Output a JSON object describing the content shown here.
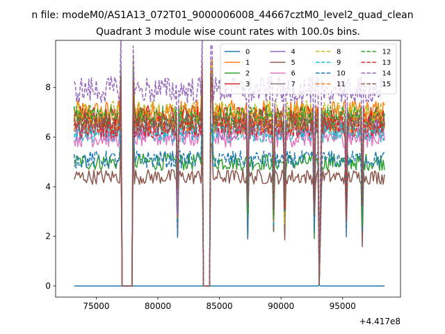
{
  "figure": {
    "suptitle": "n file: modeM0/AS1A13_072T01_9000006008_44667cztM0_level2_quad_clean",
    "title": "Quadrant 3 module wise count rates with 100.0s bins.",
    "x_offset_label": "+4.417e8"
  },
  "chart_data": {
    "type": "line",
    "title": "Quadrant 3 module wise count rates with 100.0s bins.",
    "xlabel": "",
    "ylabel": "",
    "x_offset": 441700000,
    "xlim": [
      71700,
      99700
    ],
    "ylim": [
      -0.45,
      9.9
    ],
    "xticks": [
      75000,
      80000,
      85000,
      90000,
      95000
    ],
    "xtick_labels": [
      "75000",
      "80000",
      "85000",
      "90000",
      "95000"
    ],
    "yticks": [
      0,
      2,
      4,
      6,
      8
    ],
    "ytick_labels": [
      "0",
      "2",
      "4",
      "6",
      "8"
    ],
    "grid": false,
    "legend_position": "top-right",
    "legend_columns": 4,
    "x_start": 73200,
    "x_end": 98400,
    "gaps": [
      [
        77050,
        77950
      ],
      [
        83650,
        84300
      ]
    ],
    "series": [
      {
        "name": "0",
        "color": "#1f77b4",
        "dash": "solid",
        "level": 0.0
      },
      {
        "name": "1",
        "color": "#ff7f0e",
        "dash": "solid",
        "level": 7.0
      },
      {
        "name": "2",
        "color": "#2ca02c",
        "dash": "solid",
        "level": 5.0
      },
      {
        "name": "3",
        "color": "#d62728",
        "dash": "solid",
        "level": 6.8
      },
      {
        "name": "4",
        "color": "#9467bd",
        "dash": "solid",
        "level": 6.3
      },
      {
        "name": "5",
        "color": "#8c564b",
        "dash": "solid",
        "level": 4.4
      },
      {
        "name": "6",
        "color": "#e377c2",
        "dash": "solid",
        "level": 6.0
      },
      {
        "name": "7",
        "color": "#7f7f7f",
        "dash": "solid",
        "level": 6.5
      },
      {
        "name": "8",
        "color": "#bcbd22",
        "dash": "dashed",
        "level": 7.0
      },
      {
        "name": "9",
        "color": "#17becf",
        "dash": "dashed",
        "level": 6.2
      },
      {
        "name": "10",
        "color": "#1f77b4",
        "dash": "dashed",
        "level": 5.1
      },
      {
        "name": "11",
        "color": "#ff7f0e",
        "dash": "dashed",
        "level": 6.6
      },
      {
        "name": "12",
        "color": "#2ca02c",
        "dash": "dashed",
        "level": 6.8
      },
      {
        "name": "13",
        "color": "#d62728",
        "dash": "dashed",
        "level": 6.4
      },
      {
        "name": "14",
        "color": "#9467bd",
        "dash": "dashed",
        "level": 7.9
      },
      {
        "name": "15",
        "color": "#8c564b",
        "dash": "dashed",
        "level": 6.6
      }
    ]
  }
}
